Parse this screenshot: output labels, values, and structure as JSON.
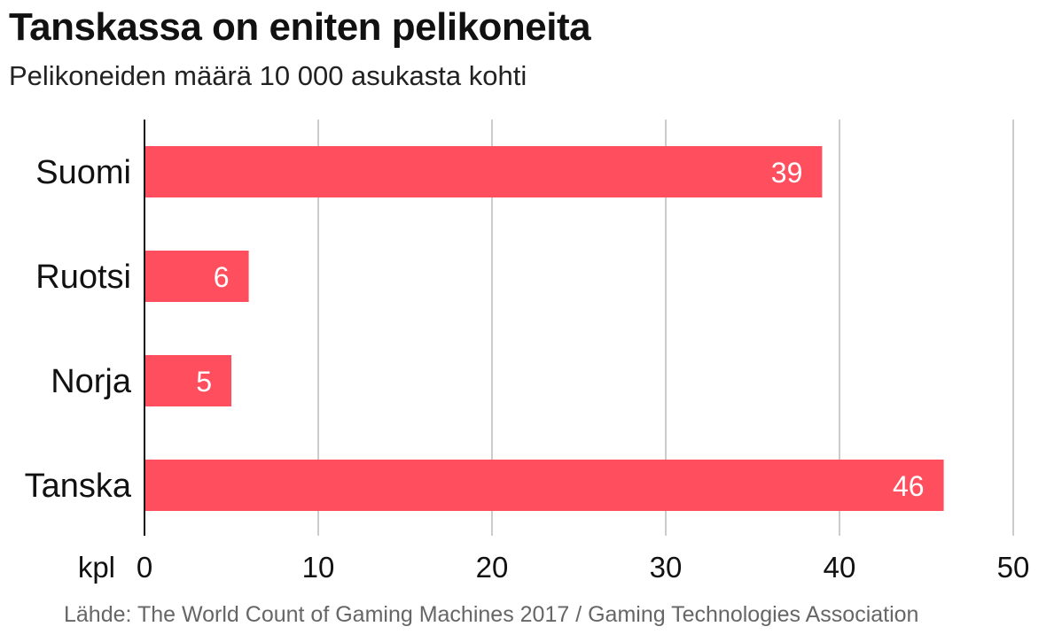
{
  "title": "Tanskassa on eniten pelikoneita",
  "subtitle": "Pelikoneiden määrä 10 000 asukasta kohti",
  "source": "Lähde: The World Count of Gaming Machines 2017 / Gaming Technologies Association",
  "colors": {
    "bar": "#ff4f5e",
    "grid": "#cccccc",
    "axis": "#111111",
    "bar_label": "#ffffff"
  },
  "chart_data": {
    "type": "bar",
    "orientation": "horizontal",
    "title": "Tanskassa on eniten pelikoneita",
    "subtitle": "Pelikoneiden määrä 10 000 asukasta kohti",
    "categories": [
      "Suomi",
      "Ruotsi",
      "Norja",
      "Tanska"
    ],
    "values": [
      39,
      6,
      5,
      46
    ],
    "data_labels": [
      "39",
      "6",
      "5",
      "46"
    ],
    "xlabel": "kpl",
    "xlim": [
      0,
      50
    ],
    "xticks": [
      0,
      10,
      20,
      30,
      40,
      50
    ],
    "grid": "vertical",
    "legend": "none"
  }
}
